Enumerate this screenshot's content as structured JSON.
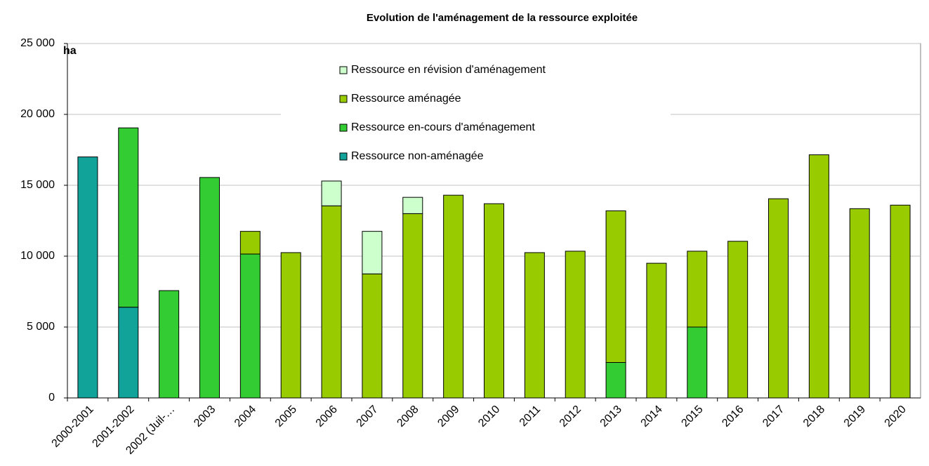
{
  "chart_data": {
    "type": "stacked_bar",
    "title": "Evolution de l'aménagement de la ressource exploitée",
    "y_label": "ha",
    "categories": [
      "2000-2001",
      "2001-2002",
      "2002 (Juil-…",
      "2003",
      "2004",
      "2005",
      "2006",
      "2007",
      "2008",
      "2009",
      "2010",
      "2011",
      "2012",
      "2013",
      "2014",
      "2015",
      "2016",
      "2017",
      "2018",
      "2019",
      "2020"
    ],
    "series": [
      {
        "name": "Ressource non-aménagée",
        "color": "#11a39a",
        "values": [
          17000,
          6400,
          0,
          0,
          0,
          0,
          0,
          0,
          0,
          0,
          0,
          0,
          0,
          0,
          0,
          0,
          0,
          0,
          0,
          0,
          0
        ]
      },
      {
        "name": "Ressource en-cours d'aménagement",
        "color": "#33cc33",
        "values": [
          0,
          12650,
          7570,
          15550,
          10150,
          0,
          0,
          0,
          0,
          0,
          0,
          0,
          0,
          2500,
          0,
          5000,
          0,
          0,
          0,
          0,
          0
        ]
      },
      {
        "name": "Ressource aménagée",
        "color": "#99cc00",
        "values": [
          0,
          0,
          0,
          0,
          1600,
          10250,
          13550,
          8750,
          13000,
          14300,
          13700,
          10250,
          10350,
          10700,
          9500,
          5350,
          11050,
          14050,
          17150,
          13350,
          13600
        ]
      },
      {
        "name": "Ressource en révision d'aménagement",
        "color": "#ccffcc",
        "values": [
          0,
          0,
          0,
          0,
          0,
          0,
          1750,
          3000,
          1150,
          0,
          0,
          0,
          0,
          0,
          0,
          0,
          0,
          0,
          0,
          0,
          0
        ]
      }
    ],
    "ylim": [
      0,
      25000
    ],
    "yticks": [
      {
        "value": 0,
        "label": "0"
      },
      {
        "value": 5000,
        "label": "5 000"
      },
      {
        "value": 10000,
        "label": "10 000"
      },
      {
        "value": 15000,
        "label": "15 000"
      },
      {
        "value": 20000,
        "label": "20 000"
      },
      {
        "value": 25000,
        "label": "25 000"
      }
    ],
    "grid": true
  }
}
